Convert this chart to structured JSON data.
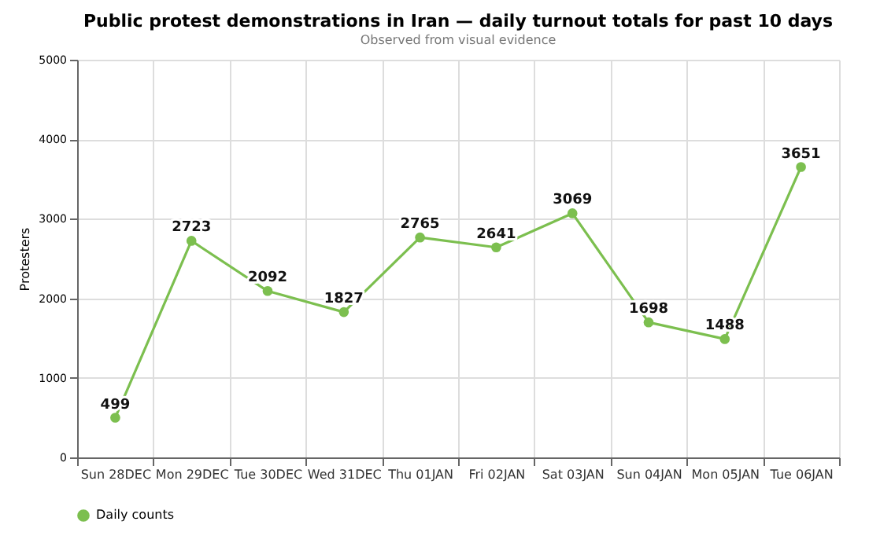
{
  "chart_data": {
    "type": "line",
    "title": "Public protest demonstrations in Iran — daily turnout totals for past 10 days",
    "subtitle": "Observed from visual evidence",
    "ylabel": "Protesters",
    "categories": [
      "Sun 28DEC",
      "Mon 29DEC",
      "Tue 30DEC",
      "Wed 31DEC",
      "Thu 01JAN",
      "Fri 02JAN",
      "Sat 03JAN",
      "Sun 04JAN",
      "Mon 05JAN",
      "Tue 06JAN"
    ],
    "series": [
      {
        "name": "Daily counts",
        "color": "#7cbf4f",
        "values": [
          499,
          2723,
          2092,
          1827,
          2765,
          2641,
          3069,
          1698,
          1488,
          3651
        ]
      }
    ],
    "ylim": [
      0,
      5000
    ],
    "yticks": [
      0,
      1000,
      2000,
      3000,
      4000,
      5000
    ],
    "grid": true,
    "legend": "bottom",
    "marker": "circle",
    "line_style": "solid",
    "data_labels": true
  }
}
